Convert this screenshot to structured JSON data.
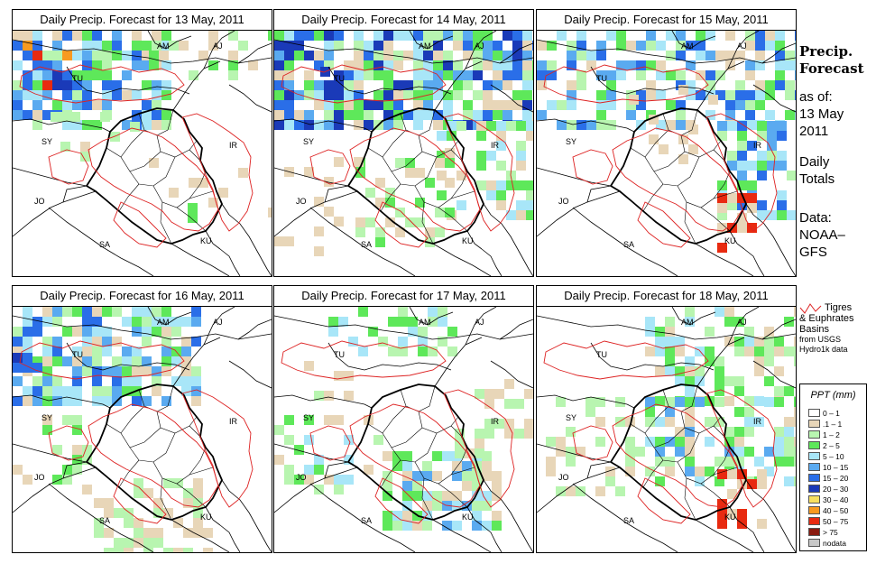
{
  "panels": [
    {
      "title": "Daily Precip. Forecast for  13 May, 2011",
      "date": "13 May"
    },
    {
      "title": "Daily Precip. Forecast for  14 May, 2011",
      "date": "14 May"
    },
    {
      "title": "Daily Precip. Forecast for  15 May, 2011",
      "date": "15 May"
    },
    {
      "title": "Daily Precip. Forecast for  16 May, 2011",
      "date": "16 May"
    },
    {
      "title": "Daily Precip. Forecast for  17 May, 2011",
      "date": "17 May"
    },
    {
      "title": "Daily Precip. Forecast for  18 May, 2011",
      "date": "18 May"
    }
  ],
  "country_labels": [
    "AM",
    "AJ",
    "TU",
    "SY",
    "IR",
    "JO",
    "SA",
    "KU"
  ],
  "sidebar": {
    "heading_line1": "Precip.",
    "heading_line2": "Forecast",
    "asof": "as of:",
    "date_line1": "13 May",
    "date_line2": "2011",
    "totals_line1": "Daily",
    "totals_line2": "Totals",
    "data_line1": "Data:",
    "data_line2": "NOAA–",
    "data_line3": "GFS"
  },
  "basin_key": {
    "line1": "Tigres",
    "line2": "& Euphrates",
    "line3": "Basins",
    "line4": "from USGS",
    "line5": "Hydro1k data",
    "line_color": "#dd2222"
  },
  "legend": {
    "title": "PPT (mm)",
    "items": [
      {
        "label": "0 – 1",
        "color": "#ffffff"
      },
      {
        "label": ".1 – 1",
        "color": "#e8d6b8"
      },
      {
        "label": "1 – 2",
        "color": "#b8f5b0"
      },
      {
        "label": "2 – 5",
        "color": "#5ee85a"
      },
      {
        "label": "5 – 10",
        "color": "#a8e6f8"
      },
      {
        "label": "10 – 15",
        "color": "#5aaaf0"
      },
      {
        "label": "15 – 20",
        "color": "#2a6ee8"
      },
      {
        "label": "20 – 30",
        "color": "#1a3ab8"
      },
      {
        "label": "30 – 40",
        "color": "#f8e060"
      },
      {
        "label": "40 – 50",
        "color": "#f89a20"
      },
      {
        "label": "50 – 75",
        "color": "#e82a10"
      },
      {
        "label": "> 75",
        "color": "#8a1a10"
      },
      {
        "label": "nodata",
        "color": "#c8c8c8"
      }
    ]
  }
}
